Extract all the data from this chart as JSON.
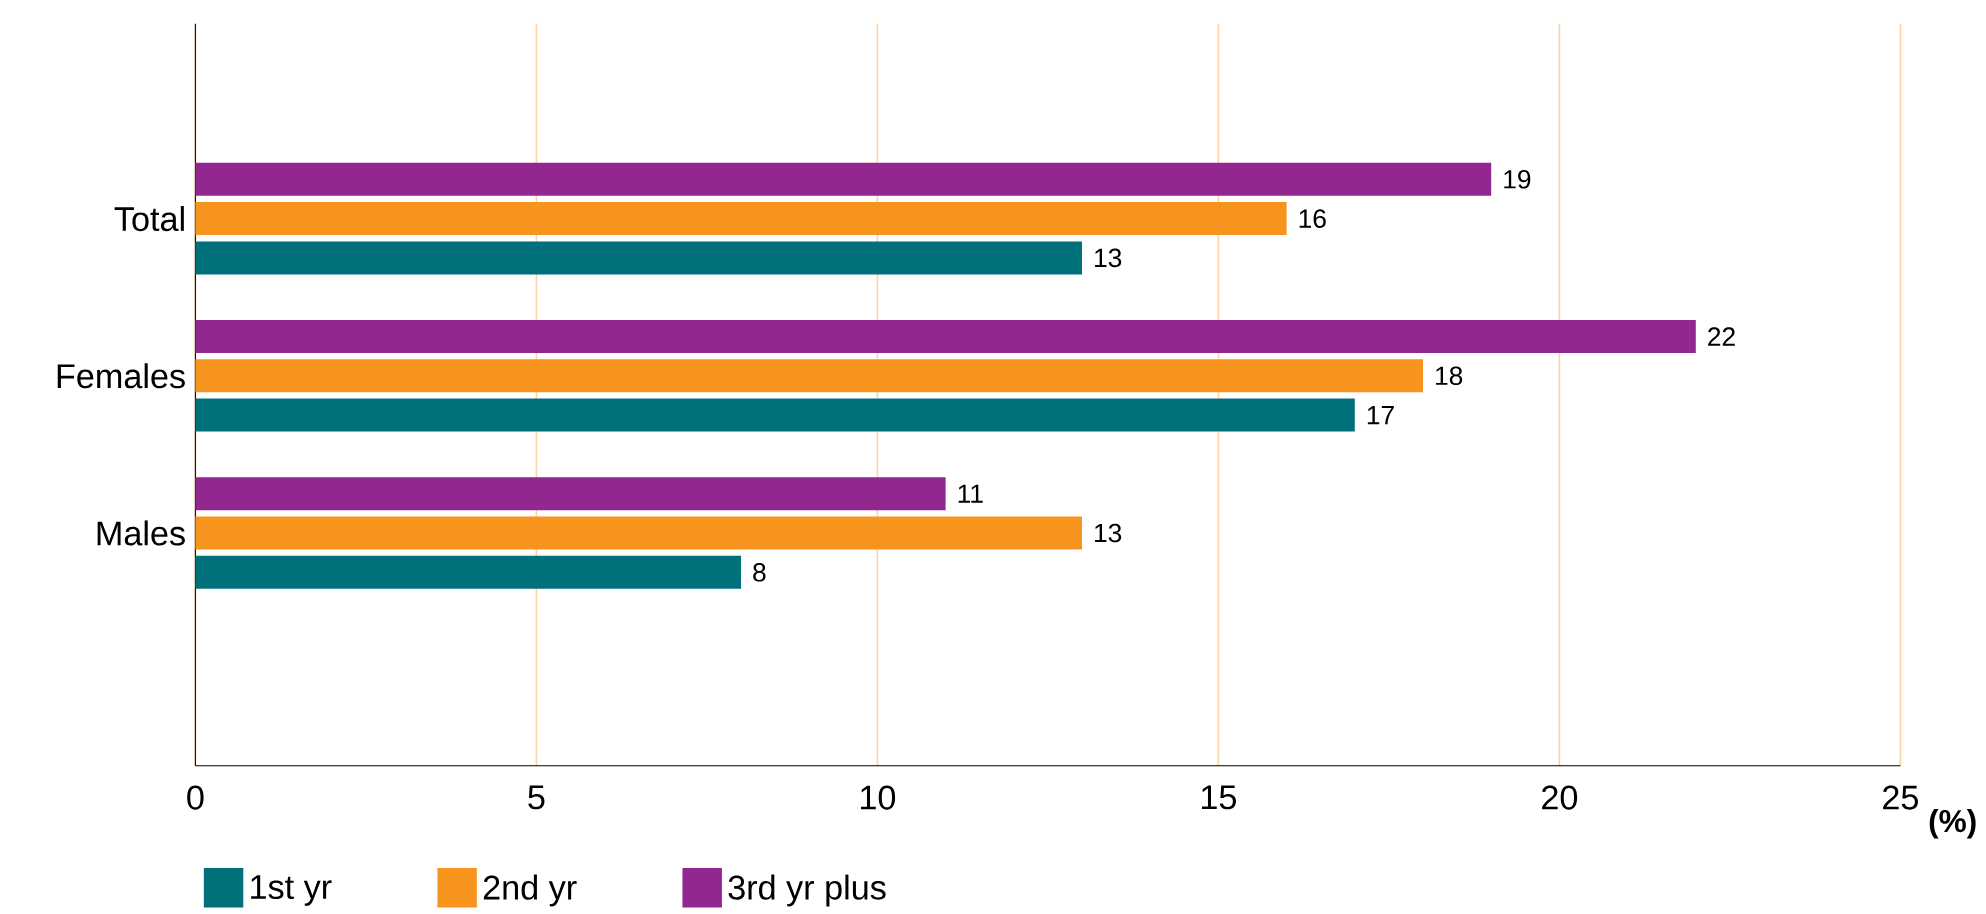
{
  "chart_data": {
    "type": "bar",
    "orientation": "horizontal",
    "categories": [
      "Total",
      "Females",
      "Males"
    ],
    "series": [
      {
        "name": "1st yr",
        "color": "#00707a",
        "values": [
          13,
          17,
          8
        ]
      },
      {
        "name": "2nd yr",
        "color": "#f7941d",
        "values": [
          16,
          18,
          13
        ]
      },
      {
        "name": "3rd yr plus",
        "color": "#92278f",
        "values": [
          19,
          22,
          11
        ]
      }
    ],
    "xlim": [
      0,
      25
    ],
    "xticks": [
      0,
      5,
      10,
      15,
      20,
      25
    ],
    "xlabel": "(%)",
    "grid": "x",
    "legend": "bottom left",
    "data_labels": true
  }
}
